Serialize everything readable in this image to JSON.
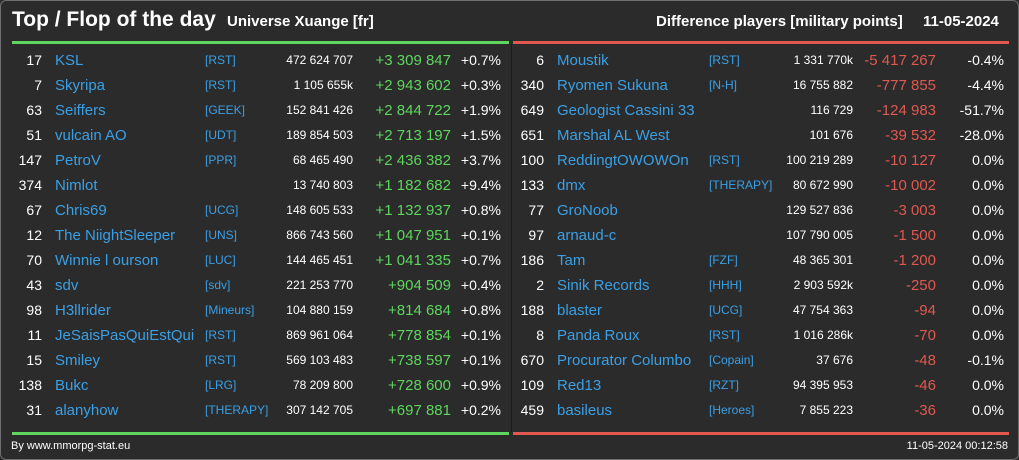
{
  "header": {
    "title": "Top / Flop of the day",
    "universe": "Universe Xuange [fr]",
    "metric": "Difference players [military points]",
    "date": "11-05-2024"
  },
  "colors": {
    "positive": "#5ed65e",
    "negative": "#e0584f",
    "link": "#3aa0e6",
    "background": "#2b2b2b"
  },
  "top": [
    {
      "rank": "17",
      "name": "KSL",
      "alliance": "[RST]",
      "points": "472 624 707",
      "diff": "+3 309 847",
      "pct": "+0.7%"
    },
    {
      "rank": "7",
      "name": "Skyripa",
      "alliance": "[RST]",
      "points": "1 105 655k",
      "diff": "+2 943 602",
      "pct": "+0.3%"
    },
    {
      "rank": "63",
      "name": "Seiffers",
      "alliance": "[GEEK]",
      "points": "152 841 426",
      "diff": "+2 844 722",
      "pct": "+1.9%"
    },
    {
      "rank": "51",
      "name": "vulcain AO",
      "alliance": "[UDT]",
      "points": "189 854 503",
      "diff": "+2 713 197",
      "pct": "+1.5%"
    },
    {
      "rank": "147",
      "name": "PetroV",
      "alliance": "[PPR]",
      "points": "68 465 490",
      "diff": "+2 436 382",
      "pct": "+3.7%"
    },
    {
      "rank": "374",
      "name": "Nimlot",
      "alliance": "",
      "points": "13 740 803",
      "diff": "+1 182 682",
      "pct": "+9.4%"
    },
    {
      "rank": "67",
      "name": "Chris69",
      "alliance": "[UCG]",
      "points": "148 605 533",
      "diff": "+1 132 937",
      "pct": "+0.8%"
    },
    {
      "rank": "12",
      "name": "The NiightSleeper",
      "alliance": "[UNS]",
      "points": "866 743 560",
      "diff": "+1 047 951",
      "pct": "+0.1%"
    },
    {
      "rank": "70",
      "name": "Winnie l ourson",
      "alliance": "[LUC]",
      "points": "144 465 451",
      "diff": "+1 041 335",
      "pct": "+0.7%"
    },
    {
      "rank": "43",
      "name": "sdv",
      "alliance": "[sdv]",
      "points": "221 253 770",
      "diff": "+904 509",
      "pct": "+0.4%"
    },
    {
      "rank": "98",
      "name": "H3llrider",
      "alliance": "[Mineurs]",
      "points": "104 880 159",
      "diff": "+814 684",
      "pct": "+0.8%"
    },
    {
      "rank": "11",
      "name": "JeSaisPasQuiEstQui",
      "alliance": "[RST]",
      "points": "869 961 064",
      "diff": "+778 854",
      "pct": "+0.1%"
    },
    {
      "rank": "15",
      "name": "Smiley",
      "alliance": "[RST]",
      "points": "569 103 483",
      "diff": "+738 597",
      "pct": "+0.1%"
    },
    {
      "rank": "138",
      "name": "Bukc",
      "alliance": "[LRG]",
      "points": "78 209 800",
      "diff": "+728 600",
      "pct": "+0.9%"
    },
    {
      "rank": "31",
      "name": "alanyhow",
      "alliance": "[THERAPY]",
      "points": "307 142 705",
      "diff": "+697 881",
      "pct": "+0.2%"
    }
  ],
  "flop": [
    {
      "rank": "6",
      "name": "Moustik",
      "alliance": "[RST]",
      "points": "1 331 770k",
      "diff": "-5 417 267",
      "pct": "-0.4%"
    },
    {
      "rank": "340",
      "name": "Ryomen Sukuna",
      "alliance": "[N-H]",
      "points": "16 755 882",
      "diff": "-777 855",
      "pct": "-4.4%"
    },
    {
      "rank": "649",
      "name": "Geologist Cassini 33",
      "alliance": "",
      "points": "116 729",
      "diff": "-124 983",
      "pct": "-51.7%"
    },
    {
      "rank": "651",
      "name": "Marshal AL West",
      "alliance": "",
      "points": "101 676",
      "diff": "-39 532",
      "pct": "-28.0%"
    },
    {
      "rank": "100",
      "name": "ReddingtOWOWOn",
      "alliance": "[RST]",
      "points": "100 219 289",
      "diff": "-10 127",
      "pct": "0.0%"
    },
    {
      "rank": "133",
      "name": "dmx",
      "alliance": "[THERAPY]",
      "points": "80 672 990",
      "diff": "-10 002",
      "pct": "0.0%"
    },
    {
      "rank": "77",
      "name": "GroNoob",
      "alliance": "",
      "points": "129 527 836",
      "diff": "-3 003",
      "pct": "0.0%"
    },
    {
      "rank": "97",
      "name": "arnaud-c",
      "alliance": "",
      "points": "107 790 005",
      "diff": "-1 500",
      "pct": "0.0%"
    },
    {
      "rank": "186",
      "name": "Tam",
      "alliance": "[FZF]",
      "points": "48 365 301",
      "diff": "-1 200",
      "pct": "0.0%"
    },
    {
      "rank": "2",
      "name": "Sinik Records",
      "alliance": "[HHH]",
      "points": "2 903 592k",
      "diff": "-250",
      "pct": "0.0%"
    },
    {
      "rank": "188",
      "name": "blaster",
      "alliance": "[UCG]",
      "points": "47 754 363",
      "diff": "-94",
      "pct": "0.0%"
    },
    {
      "rank": "8",
      "name": "Panda Roux",
      "alliance": "[RST]",
      "points": "1 016 286k",
      "diff": "-70",
      "pct": "0.0%"
    },
    {
      "rank": "670",
      "name": "Procurator Columbo",
      "alliance": "[Copain]",
      "points": "37 676",
      "diff": "-48",
      "pct": "-0.1%"
    },
    {
      "rank": "109",
      "name": "Red13",
      "alliance": "[RZT]",
      "points": "94 395 953",
      "diff": "-46",
      "pct": "0.0%"
    },
    {
      "rank": "459",
      "name": "basileus",
      "alliance": "[Heroes]",
      "points": "7 855 223",
      "diff": "-36",
      "pct": "0.0%"
    }
  ],
  "footer": {
    "credit": "By www.mmorpg-stat.eu",
    "timestamp": "11-05-2024 00:12:58"
  }
}
